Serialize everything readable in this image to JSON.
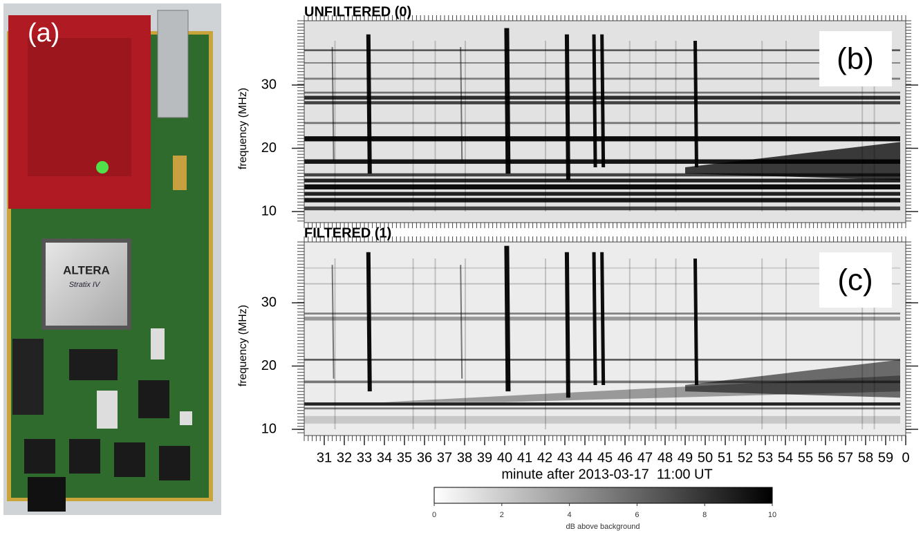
{
  "panel_labels": {
    "a": "(a)",
    "b": "(b)",
    "c": "(c)"
  },
  "photo": {
    "chip_brand": "ALTERA",
    "chip_family": "Stratix IV"
  },
  "spectrograms": [
    {
      "title": "UNFILTERED (0)",
      "ylabel": "frequency (MHz)",
      "yticks": [
        10,
        20,
        30
      ]
    },
    {
      "title": "FILTERED (1)",
      "ylabel": "frequency (MHz)",
      "yticks": [
        10,
        20,
        30
      ]
    }
  ],
  "x_axis": {
    "ticks": [
      31,
      32,
      33,
      34,
      35,
      36,
      37,
      38,
      39,
      40,
      41,
      42,
      43,
      44,
      45,
      46,
      47,
      48,
      49,
      50,
      51,
      52,
      53,
      54,
      55,
      56,
      57,
      58,
      59,
      0
    ],
    "label": "minute after 2013-03-17  11:00 UT"
  },
  "colorbar": {
    "ticks": [
      0,
      2,
      4,
      6,
      8,
      10
    ],
    "label": "dB above background"
  }
}
